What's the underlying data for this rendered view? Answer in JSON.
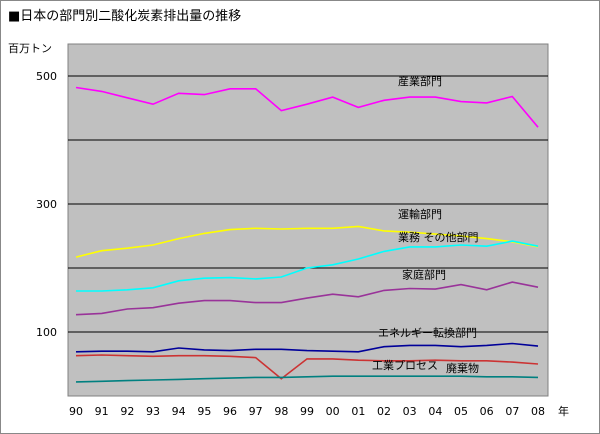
{
  "chart_data": {
    "type": "line",
    "title": "■日本の部門別二酸化炭素排出量の推移",
    "ylabel": "百万トン",
    "xlabel": "年",
    "ylim": [
      0,
      550
    ],
    "yticks": [
      100,
      300,
      500
    ],
    "grid": true,
    "categories": [
      "90",
      "91",
      "92",
      "93",
      "94",
      "95",
      "96",
      "97",
      "98",
      "99",
      "00",
      "01",
      "02",
      "03",
      "04",
      "05",
      "06",
      "07",
      "08"
    ],
    "series": [
      {
        "name": "産業部門",
        "color": "#ff00ff",
        "values": [
          482,
          476,
          466,
          456,
          473,
          471,
          480,
          480,
          446,
          456,
          467,
          451,
          462,
          467,
          467,
          460,
          458,
          468,
          420
        ]
      },
      {
        "name": "運輸部門",
        "color": "#ffff00",
        "values": [
          217,
          227,
          231,
          236,
          246,
          254,
          260,
          262,
          261,
          262,
          262,
          265,
          258,
          256,
          253,
          250,
          246,
          241,
          233
        ]
      },
      {
        "name": "業務 その他部門",
        "color": "#00ffff",
        "values": [
          164,
          164,
          166,
          169,
          180,
          184,
          185,
          183,
          186,
          200,
          205,
          214,
          226,
          233,
          233,
          236,
          234,
          242,
          234
        ]
      },
      {
        "name": "家庭部門",
        "color": "#993399",
        "values": [
          127,
          129,
          136,
          138,
          145,
          149,
          149,
          146,
          146,
          153,
          159,
          155,
          165,
          168,
          167,
          174,
          166,
          178,
          170
        ]
      },
      {
        "name": "エネルギー転換部門",
        "color": "#000099",
        "values": [
          69,
          70,
          70,
          69,
          75,
          72,
          71,
          73,
          73,
          71,
          70,
          69,
          77,
          79,
          79,
          77,
          79,
          82,
          78
        ]
      },
      {
        "name": "工業プロセス",
        "color": "#cc3333",
        "values": [
          63,
          64,
          63,
          62,
          63,
          63,
          62,
          60,
          27,
          58,
          58,
          56,
          55,
          55,
          56,
          55,
          55,
          53,
          50
        ]
      },
      {
        "name": "廃棄物",
        "color": "#008080",
        "values": [
          22,
          23,
          24,
          25,
          26,
          27,
          28,
          29,
          29,
          30,
          31,
          31,
          31,
          31,
          31,
          31,
          30,
          30,
          29
        ]
      }
    ]
  }
}
